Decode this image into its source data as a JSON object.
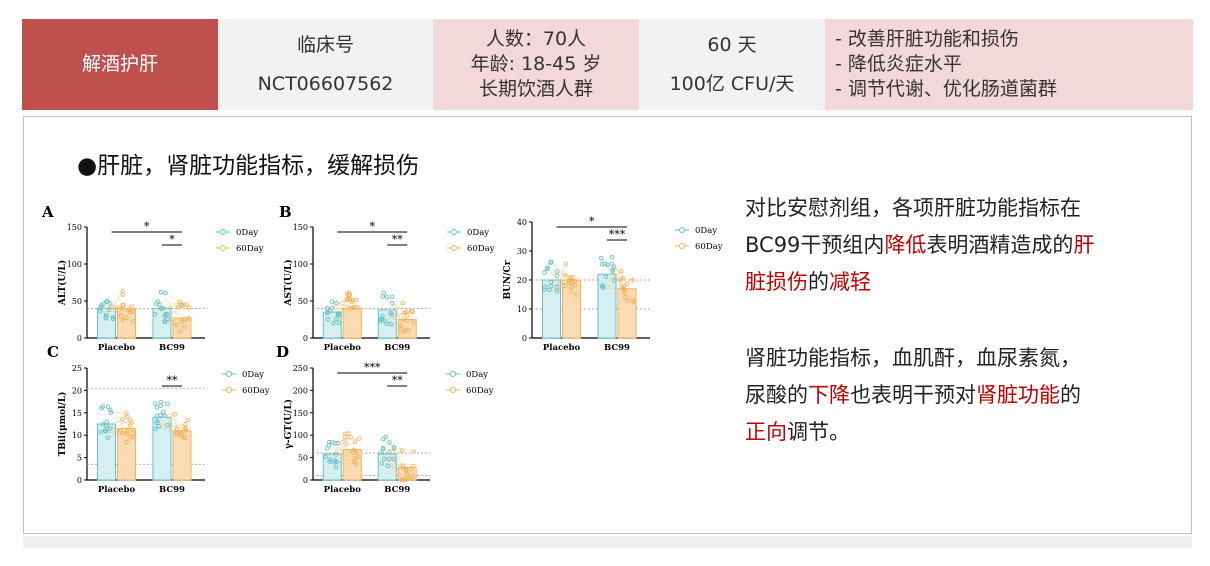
{
  "header": {
    "topic": "解酒护肝",
    "trial_label": "临床号",
    "trial_id": "NCT06607562",
    "subjects": "人数：70人",
    "age": "年龄: 18-45 岁",
    "population": "长期饮酒人群",
    "duration": "60 天",
    "dose": "100亿 CFU/天",
    "outcomes": [
      "- 改善肝脏功能和损伤",
      "- 降低炎症水平",
      "- 调节代谢、优化肠道菌群"
    ]
  },
  "section_title": "●肝脏，肾脏功能指标，缓解损伤",
  "description": {
    "p1": [
      "对比安慰剂组，各项肝脏功能指标在",
      "BC99干预组内",
      "降低",
      "表明酒精造成的",
      "肝",
      "脏损伤",
      "的",
      "减轻"
    ],
    "p2": [
      "肾脏功能指标，血肌酐，血尿素氮，",
      "尿酸的",
      "下降",
      "也表明干预对",
      "肾脏功能",
      "的",
      "正向",
      "调节。"
    ]
  },
  "colors": {
    "day0": "#5ec5cf",
    "day60": "#f5b15c",
    "day0_fill": "#d6eff2",
    "day60_fill": "#fbdcb2",
    "red_text": "#c00000",
    "header_red": "#c0504d"
  },
  "chart_data": [
    {
      "panel": "A",
      "type": "bar",
      "ylabel": "ALT(U/L)",
      "ylim": [
        0,
        150
      ],
      "yticks": [
        0,
        50,
        100,
        150
      ],
      "categories": [
        "Placebo",
        "BC99"
      ],
      "legend": [
        "0Day",
        "60Day"
      ],
      "series": [
        {
          "name": "0Day",
          "values": [
            40,
            40
          ]
        },
        {
          "name": "60Day",
          "values": [
            40,
            27
          ]
        }
      ],
      "refline": 40,
      "sig": [
        {
          "label": "*",
          "level": "outer"
        },
        {
          "label": "*",
          "level": "inner"
        }
      ]
    },
    {
      "panel": "B",
      "type": "bar",
      "ylabel": "AST(U/L)",
      "ylim": [
        0,
        150
      ],
      "yticks": [
        0,
        50,
        100,
        150
      ],
      "categories": [
        "Placebo",
        "BC99"
      ],
      "legend": [
        "0Day",
        "60Day"
      ],
      "series": [
        {
          "name": "0Day",
          "values": [
            35,
            38
          ]
        },
        {
          "name": "60Day",
          "values": [
            40,
            25
          ]
        }
      ],
      "refline": 40,
      "sig": [
        {
          "label": "*",
          "level": "outer"
        },
        {
          "label": "**",
          "level": "inner"
        }
      ]
    },
    {
      "panel": "",
      "type": "bar",
      "ylabel": "BUN/Cr",
      "ylim": [
        0,
        40
      ],
      "yticks": [
        0,
        10,
        20,
        30,
        40
      ],
      "categories": [
        "Placebo",
        "BC99"
      ],
      "legend": [
        "0Day",
        "60Day"
      ],
      "series": [
        {
          "name": "0Day",
          "values": [
            20,
            22
          ]
        },
        {
          "name": "60Day",
          "values": [
            20,
            17
          ]
        }
      ],
      "refline": 20,
      "refline2": 10,
      "sig": [
        {
          "label": "*",
          "level": "outer"
        },
        {
          "label": "***",
          "level": "inner"
        }
      ]
    },
    {
      "panel": "C",
      "type": "bar",
      "ylabel": "TBil(μmol/L)",
      "ylim": [
        0,
        25
      ],
      "yticks": [
        0,
        5,
        10,
        15,
        20,
        25
      ],
      "categories": [
        "Placebo",
        "BC99"
      ],
      "legend": [
        "0Day",
        "60Day"
      ],
      "series": [
        {
          "name": "0Day",
          "values": [
            12.5,
            14
          ]
        },
        {
          "name": "60Day",
          "values": [
            11.5,
            11
          ]
        }
      ],
      "refline": 20.5,
      "refline2": 3.5,
      "sig": [
        {
          "label": "**",
          "level": "inner"
        }
      ]
    },
    {
      "panel": "D",
      "type": "bar",
      "ylabel": "γ-GT(U/L)",
      "ylim": [
        0,
        250
      ],
      "yticks": [
        0,
        50,
        100,
        150,
        200,
        250
      ],
      "categories": [
        "Placebo",
        "BC99"
      ],
      "legend": [
        "0Day",
        "60Day"
      ],
      "series": [
        {
          "name": "0Day",
          "values": [
            58,
            58
          ]
        },
        {
          "name": "60Day",
          "values": [
            68,
            28
          ]
        }
      ],
      "refline": 60,
      "refline2": 10,
      "sig": [
        {
          "label": "***",
          "level": "outer"
        },
        {
          "label": "**",
          "level": "inner"
        }
      ]
    }
  ]
}
